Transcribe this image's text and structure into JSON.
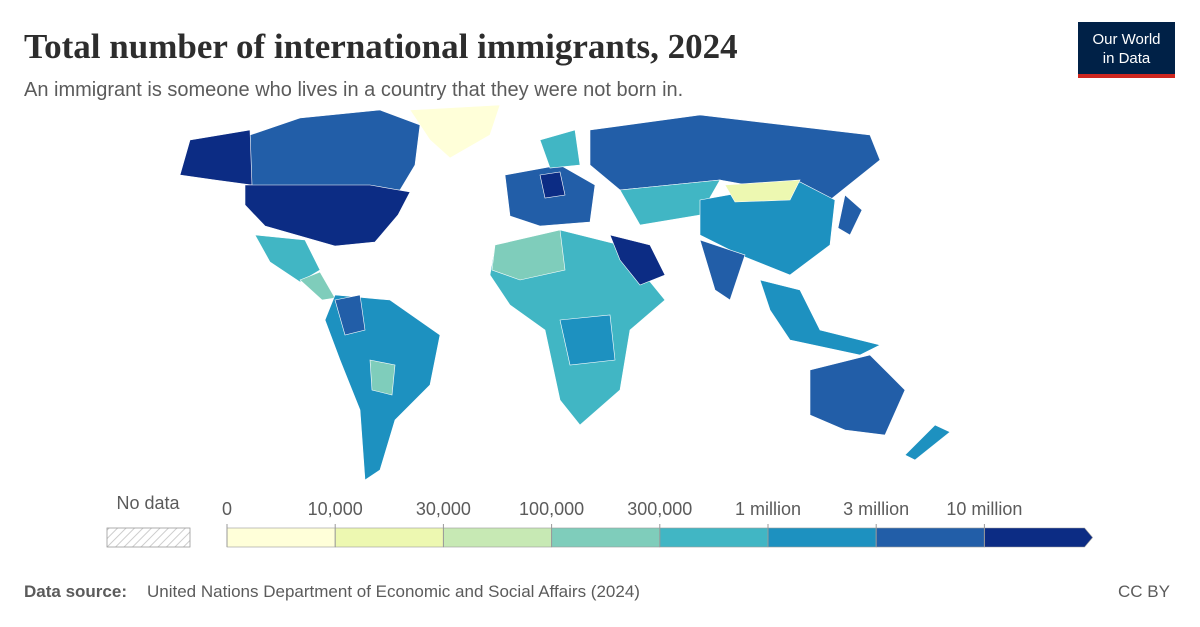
{
  "header": {
    "title": "Total number of international immigrants, 2024",
    "subtitle": "An immigrant is someone who lives in a country that they were not born in."
  },
  "logo": {
    "line1": "Our World",
    "line2": "in Data"
  },
  "legend": {
    "no_data": "No data",
    "bins": [
      0,
      {
        "value": 10000,
        "label": "10,000"
      },
      {
        "value": 30000,
        "label": "30,000"
      },
      {
        "value": 100000,
        "label": "100,000"
      },
      {
        "value": 300000,
        "label": "300,000"
      },
      {
        "value": 1000000,
        "label": "1 million"
      },
      {
        "value": 3000000,
        "label": "3 million"
      },
      {
        "value": 10000000,
        "label": "10 million"
      }
    ],
    "colors": [
      "#ffffd9",
      "#edf8b1",
      "#c7e9b4",
      "#7fcdbb",
      "#41b6c4",
      "#1d91c0",
      "#225ea8",
      "#0c2c84"
    ]
  },
  "footer": {
    "source_label": "Data source:",
    "source": "United Nations Department of Economic and Social Affairs (2024)",
    "license": "CC BY"
  }
}
